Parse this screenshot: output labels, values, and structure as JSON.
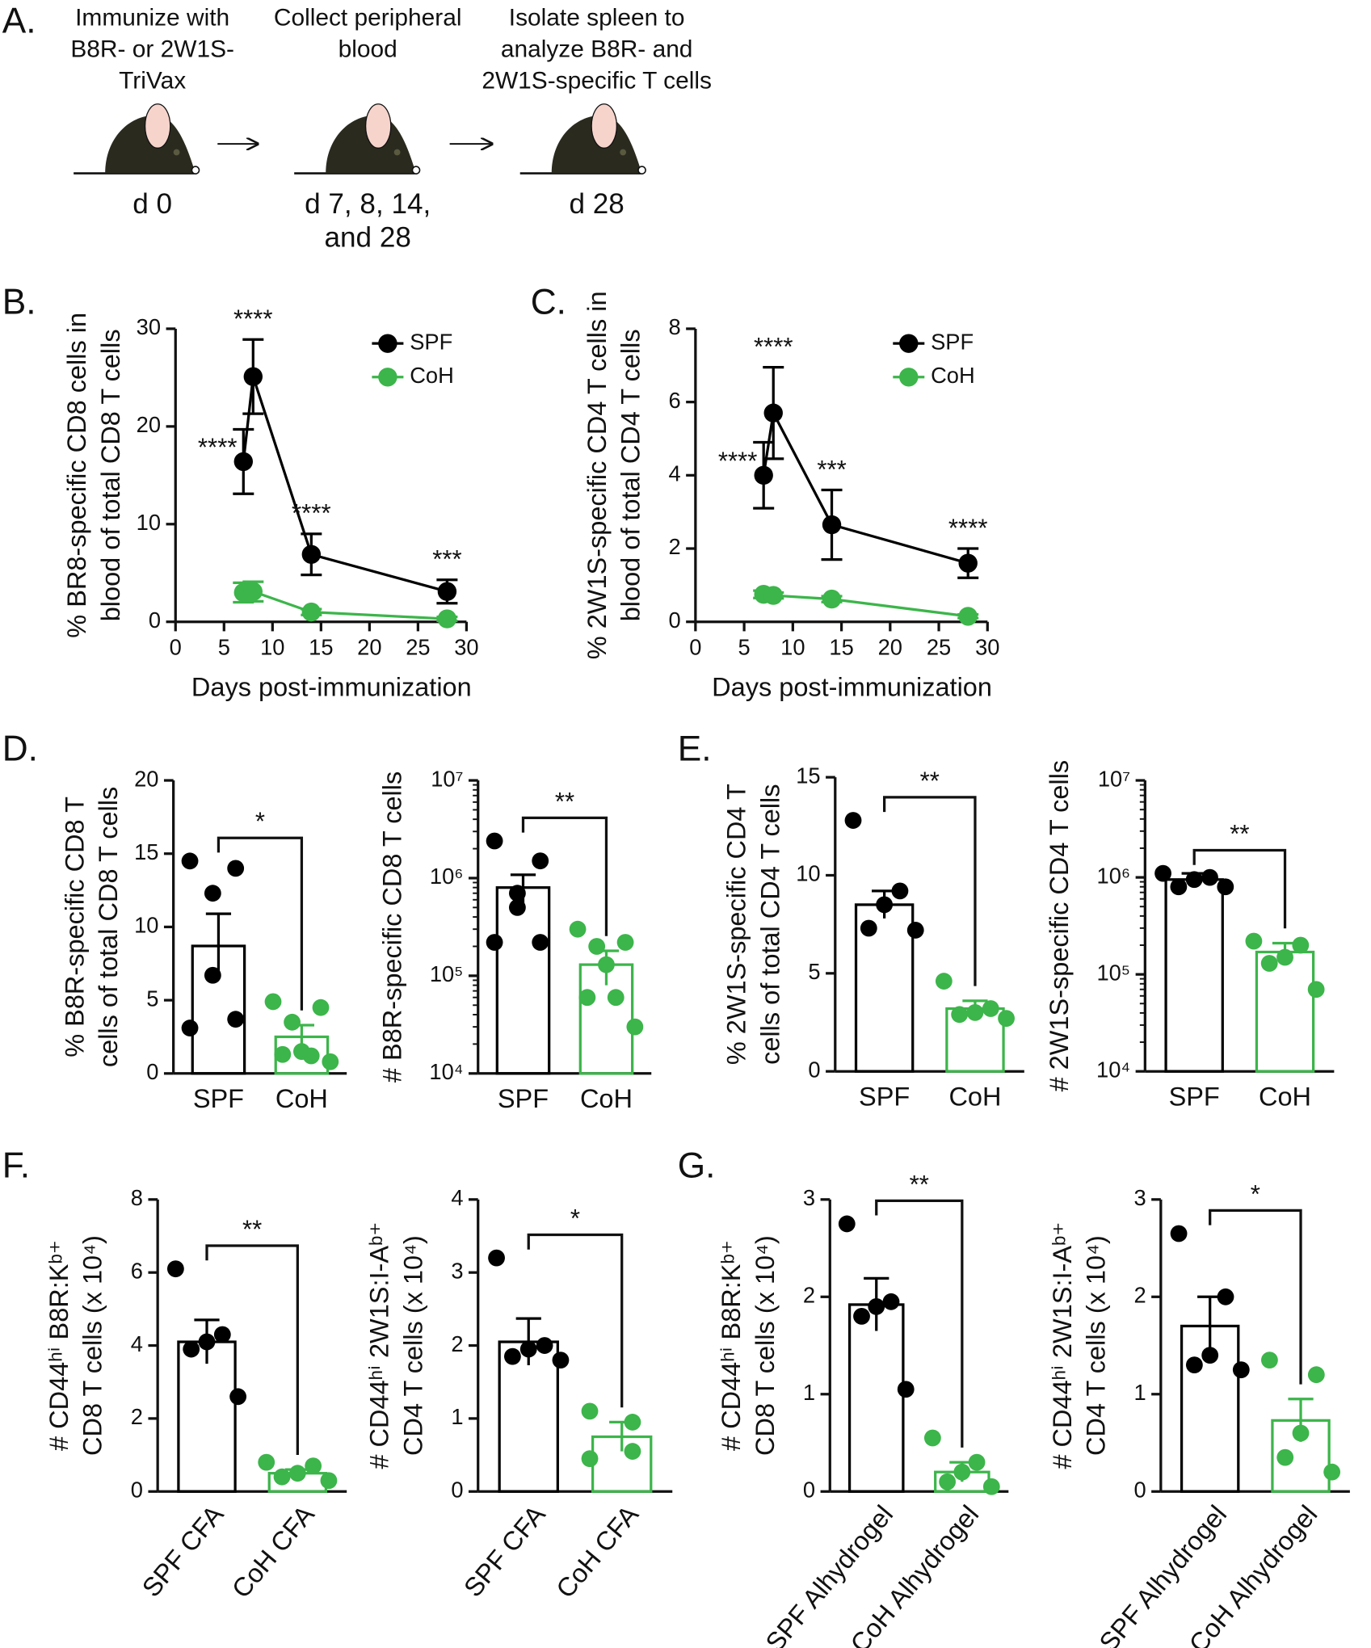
{
  "panel_a": {
    "label": "A.",
    "steps": [
      {
        "text": [
          "Immunize with",
          "B8R- or 2W1S-",
          "TriVax"
        ],
        "day": [
          "d 0"
        ]
      },
      {
        "text": [
          "Collect peripheral",
          "blood"
        ],
        "day": [
          "d 7, 8, 14,",
          "and 28"
        ]
      },
      {
        "text": [
          "Isolate spleen to",
          "analyze B8R- and",
          "2W1S-specific T cells"
        ],
        "day": [
          "d 28"
        ]
      }
    ]
  },
  "chart_data": [
    {
      "type": "line",
      "panel": "B.",
      "ylabel": [
        "% BR8-specific CD8 cells in",
        "blood of total CD8 T cells"
      ],
      "xlabel": "Days post-immunization",
      "x": [
        7,
        8,
        14,
        28
      ],
      "xlim": [
        0,
        30
      ],
      "xticks": [
        0,
        5,
        10,
        15,
        20,
        25,
        30
      ],
      "ylim": [
        0,
        30
      ],
      "yticks": [
        0,
        10,
        20,
        30
      ],
      "series": [
        {
          "name": "SPF",
          "color": "#000000",
          "values": [
            16.4,
            25.1,
            6.9,
            3.1
          ],
          "errors": [
            3.3,
            3.8,
            2.1,
            1.2
          ]
        },
        {
          "name": "CoH",
          "color": "#3cb54a",
          "values": [
            3.0,
            3.1,
            1.0,
            0.3
          ],
          "errors": [
            1.0,
            1.0,
            0.3,
            0.2
          ]
        }
      ],
      "annotations": [
        "****",
        "****",
        "****",
        "***"
      ],
      "legend": "upper right"
    },
    {
      "type": "line",
      "panel": "C.",
      "ylabel": [
        "% 2W1S-specific CD4 T cells in",
        "blood of total CD4 T cells"
      ],
      "xlabel": "Days post-immunization",
      "x": [
        7,
        8,
        14,
        28
      ],
      "xlim": [
        0,
        30
      ],
      "xticks": [
        0,
        5,
        10,
        15,
        20,
        25,
        30
      ],
      "ylim": [
        0,
        8
      ],
      "yticks": [
        0,
        2,
        4,
        6,
        8
      ],
      "series": [
        {
          "name": "SPF",
          "color": "#000000",
          "values": [
            4.0,
            5.7,
            2.65,
            1.6
          ],
          "errors": [
            0.9,
            1.25,
            0.95,
            0.4
          ]
        },
        {
          "name": "CoH",
          "color": "#3cb54a",
          "values": [
            0.75,
            0.72,
            0.62,
            0.15
          ],
          "errors": [
            0.1,
            0.08,
            0.08,
            0.05
          ]
        }
      ],
      "annotations": [
        "****",
        "****",
        "***",
        "****"
      ],
      "legend": "upper right"
    },
    {
      "type": "bar_dots",
      "panel": "D.",
      "ylabel": [
        "% B8R-specific CD8 T",
        "cells of total CD8 T cells"
      ],
      "categories": [
        "SPF",
        "CoH"
      ],
      "colors": [
        "#000000",
        "#3cb54a"
      ],
      "means": [
        8.7,
        2.5
      ],
      "errors": [
        2.2,
        0.8
      ],
      "points": [
        [
          14.5,
          14.0,
          12.3,
          6.7,
          3.7,
          3.1
        ],
        [
          4.9,
          4.5,
          3.5,
          1.5,
          1.2,
          1.3,
          0.8
        ]
      ],
      "ylim": [
        0,
        20
      ],
      "yticks": [
        0,
        5,
        10,
        15,
        20
      ],
      "significance": "*"
    },
    {
      "type": "bar_dots",
      "ylabel": [
        "# B8R-specific CD8 T cells"
      ],
      "categories": [
        "SPF",
        "CoH"
      ],
      "colors": [
        "#000000",
        "#3cb54a"
      ],
      "log_y": true,
      "means": [
        800000,
        130000
      ],
      "errors": [
        280000,
        50000
      ],
      "points": [
        [
          2400000,
          1500000,
          700000,
          500000,
          220000,
          220000
        ],
        [
          300000,
          220000,
          200000,
          130000,
          60000,
          60000,
          30000
        ]
      ],
      "ylim": [
        10000,
        10000000
      ],
      "yticks": [
        {
          "value": 10000,
          "label": "10⁴"
        },
        {
          "value": 100000,
          "label": "10⁵"
        },
        {
          "value": 1000000,
          "label": "10⁶"
        },
        {
          "value": 10000000,
          "label": "10⁷"
        }
      ],
      "significance": "**"
    },
    {
      "type": "bar_dots",
      "panel": "E.",
      "ylabel": [
        "% 2W1S-specific CD4 T",
        "cells of total CD4 T cells"
      ],
      "categories": [
        "SPF",
        "CoH"
      ],
      "colors": [
        "#000000",
        "#3cb54a"
      ],
      "means": [
        8.5,
        3.2
      ],
      "errors": [
        0.7,
        0.4
      ],
      "points": [
        [
          12.8,
          9.2,
          8.5,
          7.3,
          7.2
        ],
        [
          4.6,
          3.2,
          3.0,
          2.9,
          2.7
        ]
      ],
      "ylim": [
        0,
        15
      ],
      "yticks": [
        0,
        5,
        10,
        15
      ],
      "significance": "**"
    },
    {
      "type": "bar_dots",
      "ylabel": [
        "# 2W1S-specific CD4 T cells"
      ],
      "categories": [
        "SPF",
        "CoH"
      ],
      "colors": [
        "#000000",
        "#3cb54a"
      ],
      "log_y": true,
      "means": [
        950000,
        170000
      ],
      "errors": [
        150000,
        40000
      ],
      "points": [
        [
          1100000,
          1000000,
          950000,
          800000,
          800000
        ],
        [
          220000,
          200000,
          150000,
          130000,
          70000
        ]
      ],
      "ylim": [
        10000,
        10000000
      ],
      "yticks": [
        {
          "value": 10000,
          "label": "10⁴"
        },
        {
          "value": 100000,
          "label": "10⁵"
        },
        {
          "value": 1000000,
          "label": "10⁶"
        },
        {
          "value": 10000000,
          "label": "10⁷"
        }
      ],
      "significance": "**"
    },
    {
      "type": "bar_dots",
      "panel": "F.",
      "ylabel": [
        "# CD44ʰⁱ B8R:Kᵇ⁺",
        "CD8 T cells (x 10⁴)"
      ],
      "categories": [
        "SPF CFA",
        "CoH CFA"
      ],
      "colors": [
        "#000000",
        "#3cb54a"
      ],
      "means": [
        4.1,
        0.5
      ],
      "errors": [
        0.6,
        0.1
      ],
      "points": [
        [
          6.1,
          4.3,
          4.1,
          3.9,
          2.6
        ],
        [
          0.8,
          0.7,
          0.5,
          0.4,
          0.3
        ]
      ],
      "ylim": [
        0,
        8
      ],
      "yticks": [
        0,
        2,
        4,
        6,
        8
      ],
      "significance": "**"
    },
    {
      "type": "bar_dots",
      "ylabel": [
        "# CD44ʰⁱ 2W1S:I-Aᵇ⁺",
        "CD4 T cells (x 10⁴)"
      ],
      "categories": [
        "SPF CFA",
        "CoH CFA"
      ],
      "colors": [
        "#000000",
        "#3cb54a"
      ],
      "means": [
        2.05,
        0.75
      ],
      "errors": [
        0.32,
        0.2
      ],
      "points": [
        [
          3.2,
          2.0,
          1.95,
          1.85,
          1.8
        ],
        [
          1.1,
          0.95,
          0.55,
          0.45
        ]
      ],
      "ylim": [
        0,
        4
      ],
      "yticks": [
        0,
        1,
        2,
        3,
        4
      ],
      "significance": "*"
    },
    {
      "type": "bar_dots",
      "panel": "G.",
      "ylabel": [
        "# CD44ʰⁱ B8R:Kᵇ⁺",
        "CD8 T cells (x 10⁴)"
      ],
      "categories": [
        "SPF Alhydrogel",
        "CoH Alhydrogel"
      ],
      "colors": [
        "#000000",
        "#3cb54a"
      ],
      "means": [
        1.92,
        0.2
      ],
      "errors": [
        0.27,
        0.1
      ],
      "points": [
        [
          2.75,
          1.95,
          1.9,
          1.8,
          1.05
        ],
        [
          0.55,
          0.3,
          0.2,
          0.1,
          0.05
        ]
      ],
      "ylim": [
        0,
        3
      ],
      "yticks": [
        0,
        1,
        2,
        3
      ],
      "significance": "**"
    },
    {
      "type": "bar_dots",
      "ylabel": [
        "# CD44ʰⁱ 2W1S:I-Aᵇ⁺",
        "CD4 T cells (x 10⁴)"
      ],
      "categories": [
        "SPF Alhydrogel",
        "CoH Alhydrogel"
      ],
      "colors": [
        "#000000",
        "#3cb54a"
      ],
      "means": [
        1.7,
        0.73
      ],
      "errors": [
        0.3,
        0.22
      ],
      "points": [
        [
          2.65,
          2.0,
          1.4,
          1.3,
          1.25
        ],
        [
          1.35,
          1.2,
          0.6,
          0.35,
          0.2
        ]
      ],
      "ylim": [
        0,
        3
      ],
      "yticks": [
        0,
        1,
        2,
        3
      ],
      "significance": "*"
    }
  ]
}
